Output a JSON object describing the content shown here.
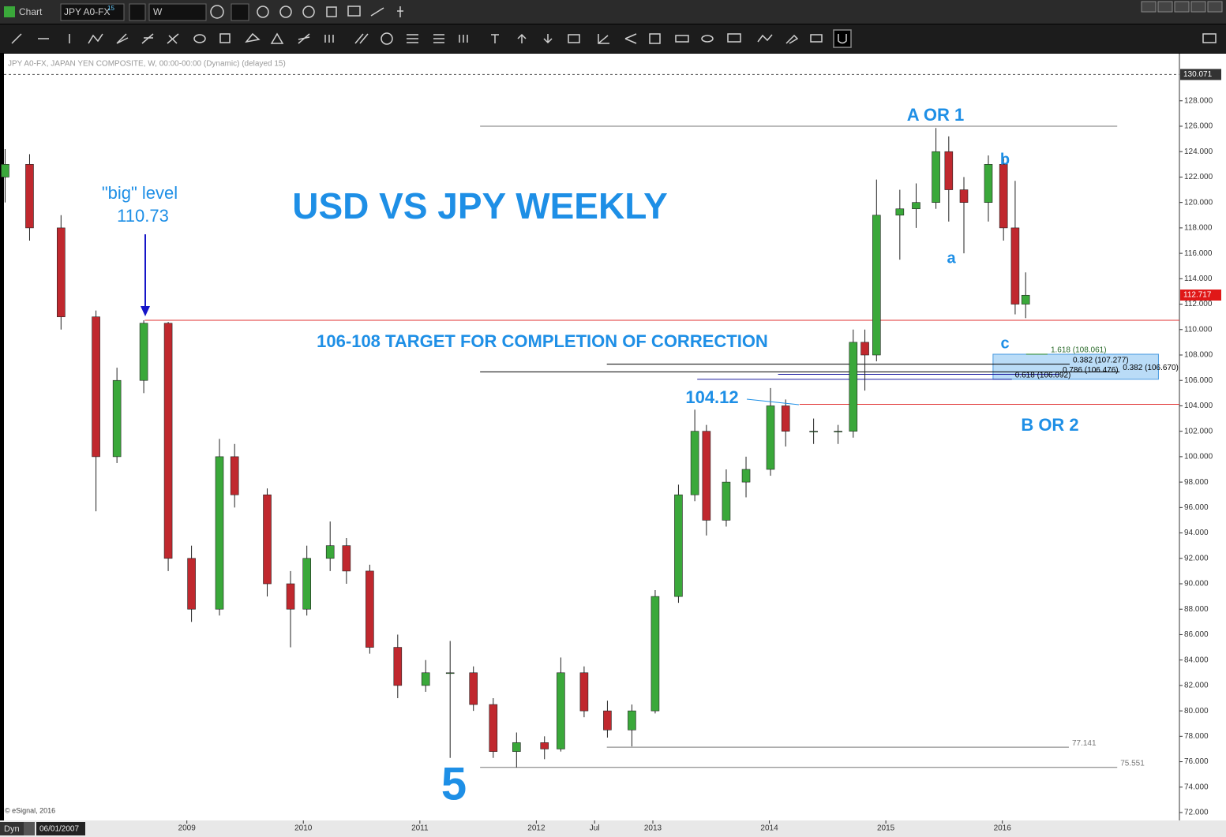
{
  "ui": {
    "window_title": "Chart",
    "symbol": "JPY A0-FX",
    "symbol_sup": "15",
    "interval": "W",
    "info_line": "JPY A0-FX, JAPAN YEN COMPOSITE, W, 00:00-00:00 (Dynamic) (delayed 15)",
    "copyright": "© eSignal, 2016",
    "mode": "Dyn",
    "start_date": "06/01/2007"
  },
  "chart_data": {
    "type": "candlestick",
    "title": "USD VS JPY WEEKLY",
    "x": [
      2007.44,
      2007.65,
      2007.92,
      2008.22,
      2008.4,
      2008.63,
      2008.84,
      2009.04,
      2009.28,
      2009.41,
      2009.69,
      2009.89,
      2010.03,
      2010.23,
      2010.37,
      2010.57,
      2010.81,
      2011.05,
      2011.26,
      2011.46,
      2011.63,
      2011.83,
      2012.07,
      2012.21,
      2012.41,
      2012.61,
      2012.82,
      2013.02,
      2013.22,
      2013.36,
      2013.46,
      2013.63,
      2013.8,
      2014.01,
      2014.14,
      2014.38,
      2014.59,
      2014.72,
      2014.82,
      2014.92,
      2015.12,
      2015.26,
      2015.43,
      2015.54,
      2015.67,
      2015.88,
      2016.01,
      2016.11,
      2016.2
    ],
    "open": [
      122.0,
      123.0,
      118.0,
      111.0,
      100.0,
      106.0,
      110.5,
      92.0,
      88.0,
      100.0,
      97.0,
      90.0,
      88.0,
      92.0,
      93.0,
      91.0,
      85.0,
      82.0,
      83.0,
      83.0,
      80.5,
      76.8,
      77.5,
      77.0,
      83.0,
      80.0,
      78.5,
      80.0,
      89.0,
      97.0,
      102.0,
      95.0,
      98.0,
      99.0,
      104.0,
      102.0,
      102.0,
      102.0,
      109.0,
      108.0,
      119.0,
      119.5,
      120.0,
      124.0,
      121.0,
      120.0,
      123.0,
      118.0,
      112.0
    ],
    "high": [
      124.2,
      123.8,
      119.0,
      111.5,
      107.0,
      110.73,
      110.6,
      93.0,
      101.4,
      101.0,
      97.5,
      91.0,
      93.0,
      94.9,
      93.6,
      91.5,
      86.0,
      84.0,
      85.5,
      83.5,
      81.0,
      78.3,
      78.0,
      84.2,
      83.5,
      80.8,
      80.5,
      89.5,
      97.8,
      103.7,
      102.5,
      99.0,
      100.0,
      105.4,
      104.5,
      103.0,
      102.5,
      110.0,
      110.0,
      121.8,
      121.0,
      121.5,
      125.86,
      125.2,
      122.0,
      123.7,
      123.6,
      121.7,
      114.5
    ],
    "low": [
      120.0,
      117.0,
      110.0,
      95.7,
      99.5,
      105.0,
      91.0,
      87.0,
      87.5,
      96.0,
      89.0,
      85.0,
      87.5,
      91.0,
      90.0,
      84.5,
      81.0,
      81.5,
      76.3,
      80.0,
      76.3,
      75.55,
      76.2,
      76.8,
      79.5,
      77.9,
      77.2,
      79.8,
      88.5,
      96.5,
      93.8,
      94.5,
      96.8,
      98.5,
      100.8,
      101.0,
      101.0,
      101.5,
      105.2,
      107.5,
      115.5,
      118.0,
      119.5,
      118.5,
      116.0,
      118.5,
      117.0,
      111.2,
      110.9
    ],
    "close": [
      123.0,
      118.0,
      111.0,
      100.0,
      106.0,
      110.5,
      92.0,
      88.0,
      100.0,
      97.0,
      90.0,
      88.0,
      92.0,
      93.0,
      91.0,
      85.0,
      82.0,
      83.0,
      83.0,
      80.5,
      76.8,
      77.5,
      77.0,
      83.0,
      80.0,
      78.5,
      80.0,
      89.0,
      97.0,
      102.0,
      95.0,
      98.0,
      99.0,
      104.0,
      102.0,
      102.0,
      102.0,
      109.0,
      108.0,
      119.0,
      119.5,
      120.0,
      124.0,
      121.0,
      120.0,
      123.0,
      118.0,
      112.0,
      112.7
    ],
    "up_color": "#3aa83a",
    "down_color": "#c0282e",
    "xlim": [
      2007.43,
      2017.52
    ],
    "xticks": [
      2009,
      2010,
      2011,
      2012,
      {
        "value": 2012.5,
        "label": "Jul"
      },
      2013,
      2014,
      2015,
      2016
    ],
    "ylim": [
      71.38,
      131.71
    ],
    "yticks": [
      {
        "value": 72,
        "label": "72.000"
      },
      {
        "value": 74,
        "label": "74.000"
      },
      {
        "value": 76,
        "label": "76.000"
      },
      {
        "value": 78,
        "label": "78.000"
      },
      {
        "value": 80,
        "label": "80.000"
      },
      {
        "value": 82,
        "label": "82.000"
      },
      {
        "value": 84,
        "label": "84.000"
      },
      {
        "value": 86,
        "label": "86.000"
      },
      {
        "value": 88,
        "label": "88.000"
      },
      {
        "value": 90,
        "label": "90.000"
      },
      {
        "value": 92,
        "label": "92.000"
      },
      {
        "value": 94,
        "label": "94.000"
      },
      {
        "value": 96,
        "label": "96.000"
      },
      {
        "value": 98,
        "label": "98.000"
      },
      {
        "value": 100,
        "label": "100.000"
      },
      {
        "value": 102,
        "label": "102.000"
      },
      {
        "value": 104,
        "label": "104.000"
      },
      {
        "value": 106,
        "label": "106.000"
      },
      {
        "value": 108,
        "label": "108.000"
      },
      {
        "value": 110,
        "label": "110.000"
      },
      {
        "value": 112,
        "label": "112.000"
      },
      {
        "value": 114,
        "label": "114.000"
      },
      {
        "value": 116,
        "label": "116.000"
      },
      {
        "value": 118,
        "label": "118.000"
      },
      {
        "value": 120,
        "label": "120.000"
      },
      {
        "value": 122,
        "label": "122.000"
      },
      {
        "value": 124,
        "label": "124.000"
      },
      {
        "value": 126,
        "label": "126.000"
      },
      {
        "value": 128,
        "label": "128.000"
      }
    ],
    "grid": false,
    "last_price": 112.717,
    "top_line": 130.071,
    "levels": [
      {
        "value": 126,
        "from": 2011.517,
        "to": 2016.986,
        "color": "#777777"
      },
      {
        "value": 110.73,
        "from": 2008.639,
        "to": 2017.52,
        "color": "#e03030"
      },
      {
        "value": 104.12,
        "from": 2014.259,
        "to": 2017.52,
        "color": "#e03030"
      },
      {
        "value": 108.061,
        "from": 2016.204,
        "to": 2016.388,
        "color": "#2a8a2a",
        "label": "1.618 (108.061)"
      },
      {
        "value": 107.277,
        "from": 2012.605,
        "to": 2016.578,
        "color": "#000000",
        "label": "0.382 (107.277)"
      },
      {
        "value": 106.67,
        "from": 2011.517,
        "to": 2017.007,
        "color": "#000000",
        "label": "0.382 (106.670)"
      },
      {
        "value": 106.476,
        "from": 2014.075,
        "to": 2016.49,
        "color": "#1a1aa0",
        "label": "0.786 (106.476)"
      },
      {
        "value": 106.092,
        "from": 2013.381,
        "to": 2016.082,
        "color": "#1a1aa0",
        "label": "0.618 (106.092)"
      },
      {
        "value": 77.141,
        "from": 2012.605,
        "to": 2016.571,
        "color": "#777777",
        "label": "77.141"
      },
      {
        "value": 75.551,
        "from": 2011.517,
        "to": 2016.986,
        "color": "#777777",
        "label": "75.551"
      }
    ],
    "zone": {
      "low": 106.092,
      "high": 108.061,
      "from": 2015.92,
      "to": 2017.34,
      "color": "#a9d3f5"
    },
    "annotations": {
      "top": "A OR 1",
      "small_b": "b",
      "small_a": "a",
      "small_c": "c",
      "bottom": "B OR 2",
      "big_level": "\"big\" level",
      "big_value": "110.73",
      "target": "106-108 TARGET FOR COMPLETION OF CORRECTION",
      "low_label": "104.12",
      "wave5": "5"
    }
  }
}
